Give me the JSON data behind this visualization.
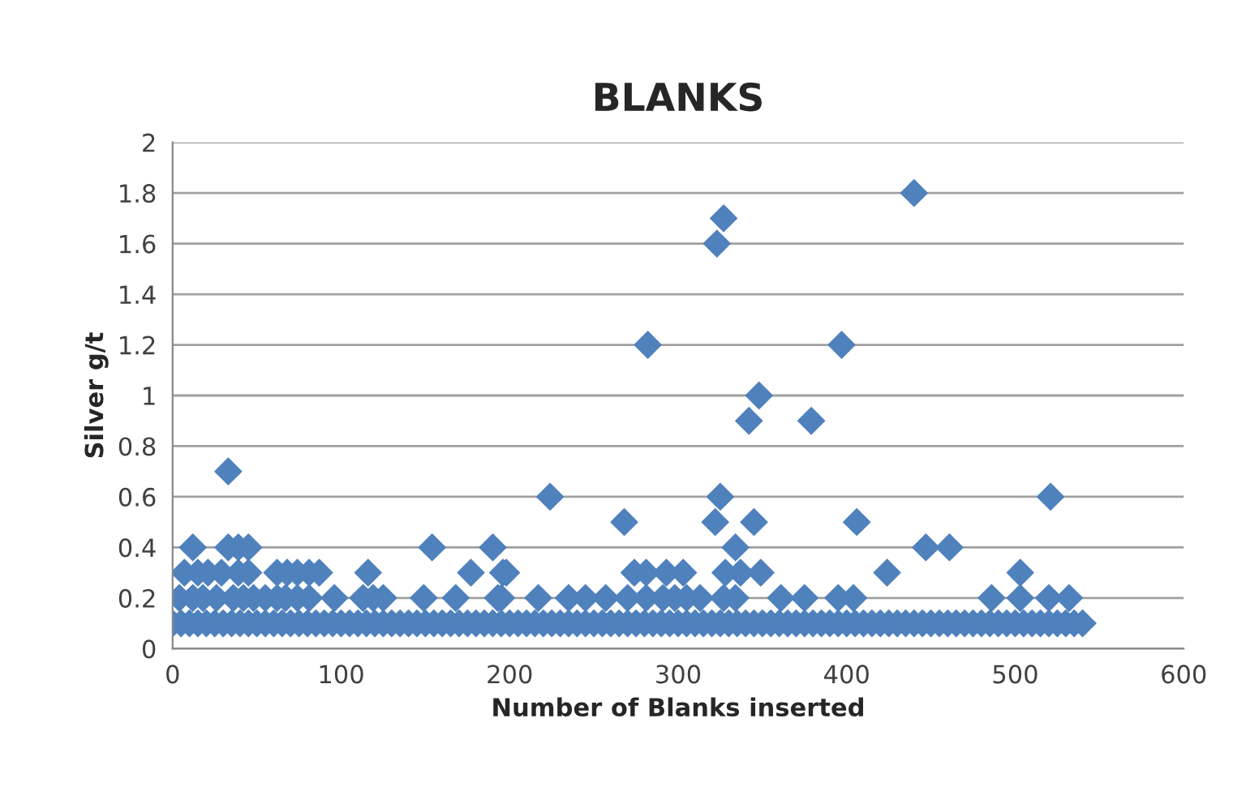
{
  "chart_data": {
    "type": "scatter",
    "title": "BLANKS",
    "xlabel": "Number of Blanks inserted",
    "ylabel": "Silver g/t",
    "xlim": [
      0,
      600
    ],
    "xticks": [
      0,
      100,
      200,
      300,
      400,
      500,
      600
    ],
    "ylim": [
      0,
      2
    ],
    "yticks": [
      0,
      0.2,
      0.4,
      0.6,
      0.8,
      1,
      1.2,
      1.4,
      1.6,
      1.8,
      2
    ],
    "grid": "y",
    "marker": "diamond",
    "series": [
      {
        "color": "#4f81bd",
        "x": [
          0,
          5,
          10,
          15,
          20,
          25,
          30,
          35,
          40,
          45,
          50,
          55,
          60,
          65,
          70,
          75,
          80,
          85,
          90,
          95,
          100,
          105,
          110,
          115,
          120,
          125,
          130,
          135,
          140,
          145,
          150,
          155,
          160,
          165,
          170,
          175,
          180,
          185,
          190,
          195,
          200,
          205,
          210,
          215,
          220,
          225,
          230,
          235,
          240,
          245,
          250,
          255,
          260,
          265,
          270,
          275,
          280,
          285,
          290,
          295,
          300,
          305,
          310,
          315,
          320,
          325,
          330,
          335,
          340,
          345,
          350,
          355,
          360,
          365,
          370,
          375,
          380,
          385,
          390,
          395,
          400,
          405,
          410,
          415,
          420,
          425,
          430,
          435,
          440,
          445,
          450,
          455,
          460,
          465,
          470,
          475,
          480,
          485,
          490,
          495,
          500,
          505,
          510,
          515,
          520,
          525,
          530,
          535,
          540,
          4,
          12,
          18,
          26,
          36,
          42,
          48,
          55,
          62,
          67,
          74,
          81,
          96,
          113,
          119,
          125,
          149,
          168,
          193,
          195,
          217,
          235,
          245,
          257,
          270,
          281,
          291,
          298,
          305,
          313,
          327,
          334,
          361,
          375,
          395,
          404,
          486,
          503,
          520,
          532,
          7,
          15,
          21,
          29,
          39,
          45,
          62,
          68,
          74,
          81,
          87,
          116,
          177,
          196,
          198,
          274,
          281,
          293,
          303,
          328,
          337,
          349,
          424,
          503,
          12,
          33,
          39,
          45,
          154,
          190,
          334,
          447,
          461,
          268,
          322,
          345,
          406,
          224,
          325,
          521,
          33,
          342,
          379,
          348,
          282,
          397,
          323,
          327,
          440
        ],
        "values": [
          0.1,
          0.1,
          0.1,
          0.1,
          0.1,
          0.1,
          0.1,
          0.1,
          0.1,
          0.1,
          0.1,
          0.1,
          0.1,
          0.1,
          0.1,
          0.1,
          0.1,
          0.1,
          0.1,
          0.1,
          0.1,
          0.1,
          0.1,
          0.1,
          0.1,
          0.1,
          0.1,
          0.1,
          0.1,
          0.1,
          0.1,
          0.1,
          0.1,
          0.1,
          0.1,
          0.1,
          0.1,
          0.1,
          0.1,
          0.1,
          0.1,
          0.1,
          0.1,
          0.1,
          0.1,
          0.1,
          0.1,
          0.1,
          0.1,
          0.1,
          0.1,
          0.1,
          0.1,
          0.1,
          0.1,
          0.1,
          0.1,
          0.1,
          0.1,
          0.1,
          0.1,
          0.1,
          0.1,
          0.1,
          0.1,
          0.1,
          0.1,
          0.1,
          0.1,
          0.1,
          0.1,
          0.1,
          0.1,
          0.1,
          0.1,
          0.1,
          0.1,
          0.1,
          0.1,
          0.1,
          0.1,
          0.1,
          0.1,
          0.1,
          0.1,
          0.1,
          0.1,
          0.1,
          0.1,
          0.1,
          0.1,
          0.1,
          0.1,
          0.1,
          0.1,
          0.1,
          0.1,
          0.1,
          0.1,
          0.1,
          0.1,
          0.1,
          0.1,
          0.1,
          0.1,
          0.1,
          0.1,
          0.1,
          0.1,
          0.2,
          0.2,
          0.2,
          0.2,
          0.2,
          0.2,
          0.2,
          0.2,
          0.2,
          0.2,
          0.2,
          0.2,
          0.2,
          0.2,
          0.2,
          0.2,
          0.2,
          0.2,
          0.2,
          0.2,
          0.2,
          0.2,
          0.2,
          0.2,
          0.2,
          0.2,
          0.2,
          0.2,
          0.2,
          0.2,
          0.2,
          0.2,
          0.2,
          0.2,
          0.2,
          0.2,
          0.2,
          0.2,
          0.2,
          0.2,
          0.3,
          0.3,
          0.3,
          0.3,
          0.3,
          0.3,
          0.3,
          0.3,
          0.3,
          0.3,
          0.3,
          0.3,
          0.3,
          0.3,
          0.3,
          0.3,
          0.3,
          0.3,
          0.3,
          0.3,
          0.3,
          0.3,
          0.3,
          0.3,
          0.4,
          0.4,
          0.4,
          0.4,
          0.4,
          0.4,
          0.4,
          0.4,
          0.4,
          0.5,
          0.5,
          0.5,
          0.5,
          0.6,
          0.6,
          0.6,
          0.7,
          0.9,
          0.9,
          1,
          1.2,
          1.2,
          1.6,
          1.7,
          1.8
        ]
      }
    ]
  }
}
